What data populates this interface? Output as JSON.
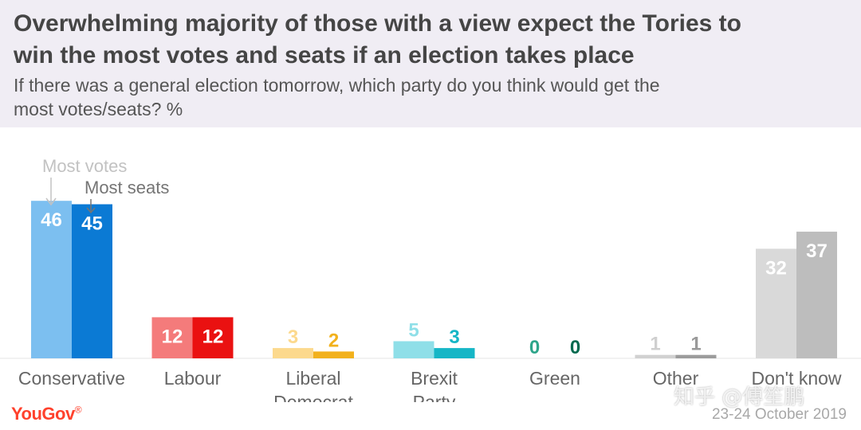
{
  "title_line1": "Overwhelming majority of those with a view expect the Tories to",
  "title_line2": "win the most votes and seats if an election takes place",
  "subtitle_line1": "If there was a general election tomorrow, which party do you think would get the",
  "subtitle_line2": "most votes/seats? %",
  "date": "23-24 October 2019",
  "logo": "YouGov",
  "watermark": "知乎 @傅笙鹏",
  "chart_data": {
    "type": "bar",
    "categories": [
      [
        "Conservative"
      ],
      [
        "Labour"
      ],
      [
        "Liberal",
        "Democrat"
      ],
      [
        "Brexit",
        "Party"
      ],
      [
        "Green"
      ],
      [
        "Other"
      ],
      [
        "Don't know"
      ]
    ],
    "series": [
      {
        "name": "Most votes",
        "values": [
          46,
          12,
          3,
          5,
          0,
          1,
          32
        ]
      },
      {
        "name": "Most seats",
        "values": [
          45,
          12,
          2,
          3,
          0,
          1,
          37
        ]
      }
    ],
    "colors": [
      [
        "#7cbff0",
        "#0b7ad4"
      ],
      [
        "#f47b7b",
        "#ea1111"
      ],
      [
        "#fcd98d",
        "#f2b11c"
      ],
      [
        "#8fdfe8",
        "#16b6c6"
      ],
      [
        "#2ea58a",
        "#006a4f"
      ],
      [
        "#d1d1d1",
        "#9c9c9c"
      ],
      [
        "#d9d9d9",
        "#bdbdbd"
      ]
    ],
    "label_colors": [
      [
        "#ffffff",
        "#ffffff"
      ],
      [
        "#ffffff",
        "#ffffff"
      ],
      [
        "#fcd98d",
        "#f2b11c"
      ],
      [
        "#8fdfe8",
        "#16b6c6"
      ],
      [
        "#2ea58a",
        "#006a4f"
      ],
      [
        "#cfcfcf",
        "#9a9a9a"
      ],
      [
        "#ffffff",
        "#ffffff"
      ]
    ],
    "ylim": [
      0,
      100
    ],
    "xlabel": "",
    "ylabel": "",
    "annotations": {
      "votes": "Most votes",
      "seats": "Most seats"
    },
    "legend": "annotation arrows above first category"
  }
}
